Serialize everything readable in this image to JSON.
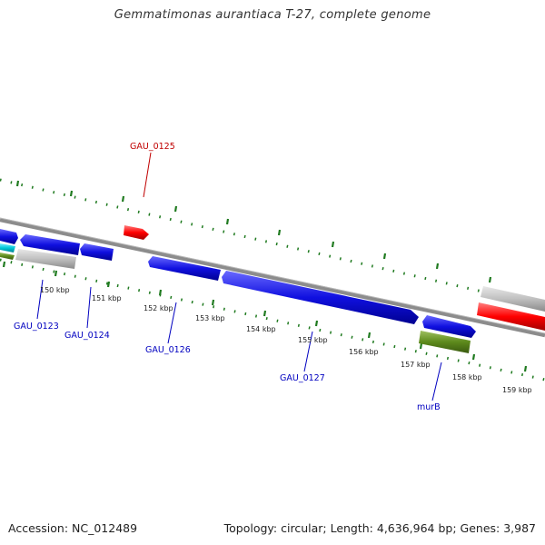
{
  "title": "Gemmatimonas aurantiaca T-27, complete genome",
  "footer": {
    "accession": "Accession: NC_012489",
    "summary": "Topology: circular; Length: 4,636,964 bp; Genes: 3,987"
  },
  "colors": {
    "forward_gene": "#1010e0",
    "highlight_gene": "#ff0000",
    "pseudo_gene": "#b8b8b8",
    "rna_gene": "#5d8a1c",
    "cyan_gene": "#00c8d8",
    "tick_mark": "#1f7a1f",
    "label_blue": "#0000c0",
    "label_red": "#c00000"
  },
  "scale": {
    "ticks": [
      {
        "label": "150 kbp"
      },
      {
        "label": "151 kbp"
      },
      {
        "label": "152 kbp"
      },
      {
        "label": "153 kbp"
      },
      {
        "label": "154 kbp"
      },
      {
        "label": "155 kbp"
      },
      {
        "label": "156 kbp"
      },
      {
        "label": "157 kbp"
      },
      {
        "label": "158 kbp"
      },
      {
        "label": "159 kbp"
      }
    ]
  },
  "genes": {
    "gau_0123": "GAU_0123",
    "gau_0124": "GAU_0124",
    "gau_0125": "GAU_0125",
    "gau_0126": "GAU_0126",
    "gau_0127": "GAU_0127",
    "murB": "murB"
  }
}
